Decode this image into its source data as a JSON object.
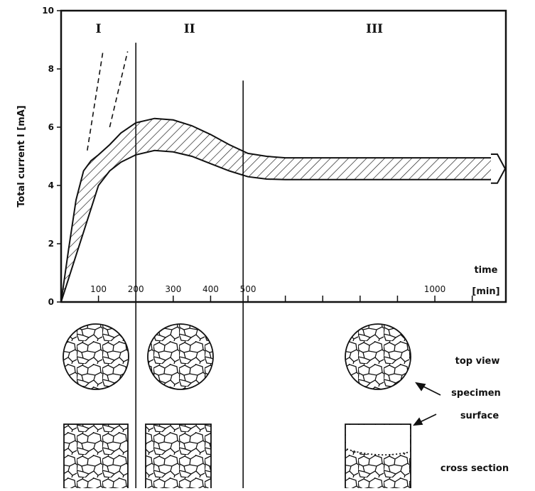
{
  "chart_data": {
    "type": "band",
    "y_label": "Total current I   [mA]",
    "x_label": "time",
    "x_unit": "[min]",
    "xlim": [
      0,
      1190
    ],
    "ylim": [
      0,
      10
    ],
    "yticks": [
      0,
      2,
      4,
      6,
      8,
      10
    ],
    "xticks": [
      100,
      200,
      300,
      400,
      500,
      1000
    ],
    "minor_xticks": [
      600,
      700,
      800,
      900,
      1100
    ],
    "band": {
      "x": [
        0,
        20,
        40,
        60,
        80,
        100,
        130,
        160,
        200,
        250,
        300,
        350,
        400,
        450,
        500,
        550,
        600,
        700,
        800,
        900,
        1000,
        1150
      ],
      "upper": [
        0,
        1.8,
        3.5,
        4.5,
        4.85,
        5.05,
        5.4,
        5.8,
        6.15,
        6.3,
        6.25,
        6.05,
        5.75,
        5.4,
        5.1,
        5.0,
        4.95,
        4.95,
        4.95,
        4.95,
        4.95,
        4.95
      ],
      "lower": [
        0,
        0.8,
        1.6,
        2.4,
        3.2,
        4.0,
        4.5,
        4.8,
        5.05,
        5.2,
        5.15,
        5.0,
        4.75,
        4.5,
        4.3,
        4.22,
        4.2,
        4.2,
        4.2,
        4.2,
        4.2,
        4.2
      ]
    },
    "dashed_lines": [
      {
        "x": [
          70,
          112
        ],
        "y": [
          5.2,
          8.6
        ]
      },
      {
        "x": [
          130,
          178
        ],
        "y": [
          6.0,
          8.6
        ]
      }
    ],
    "region_boundaries": [
      {
        "x": 200,
        "top": 8.9
      },
      {
        "x": 487,
        "top": 7.6
      }
    ],
    "region_labels": [
      "I",
      "II",
      "III"
    ]
  },
  "diagram": {
    "top_view": "top view",
    "specimen": "specimen",
    "surface": "surface",
    "cross_section": "cross section"
  }
}
